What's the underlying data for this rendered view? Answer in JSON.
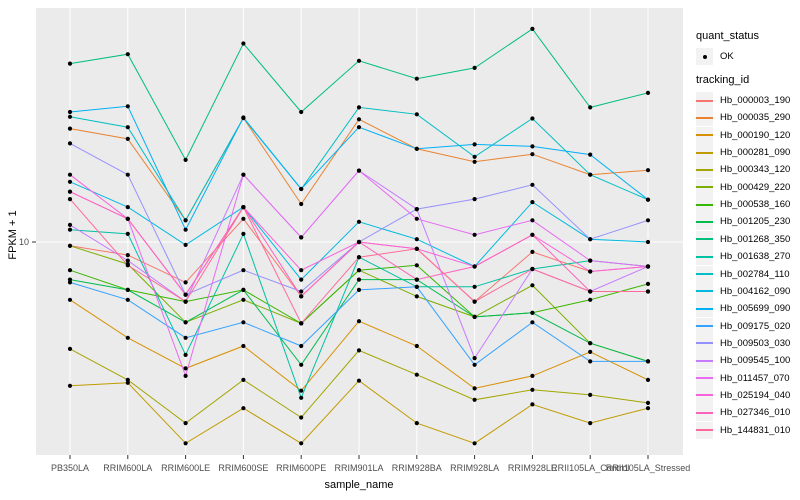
{
  "figure": {
    "background": "#FFFFFF",
    "panel_background": "#EBEBEB",
    "gridline_color": "#FFFFFF",
    "tick_color": "#333333",
    "point_color": "#000000",
    "legend_key_background": "#F2F2F2"
  },
  "axes": {
    "x_title": "sample_name",
    "y_title": "FPKM + 1",
    "y_tick_labels": [
      "10"
    ]
  },
  "legend": {
    "quant_status_title": "quant_status",
    "quant_status_items": [
      {
        "label": "OK",
        "marker": "black-point"
      }
    ],
    "tracking_title": "tracking_id"
  },
  "chart_data": {
    "type": "line",
    "title": "",
    "xlabel": "sample_name",
    "ylabel": "FPKM + 1",
    "y_scale": "log10",
    "y_ticks": [
      10
    ],
    "ylim": [
      1,
      120
    ],
    "grid": "major, white on grey panel",
    "legend_position": "right",
    "marker": "black point (quant_status = OK) at every observation",
    "x_categories": [
      "PB350LA",
      "RRIM600LA",
      "RRIM600LE",
      "RRIM600SE",
      "RRIM600PE",
      "RRIM901LA",
      "RRIM928BA",
      "RRIM928LA",
      "RRIM928LE",
      "RRII105LA_Control",
      "RRII105LA_Stressed"
    ],
    "series": [
      {
        "name": "Hb_000003_190",
        "color": "#F8766D",
        "values": [
          9.6,
          8.7,
          6.5,
          12.8,
          5.6,
          10.0,
          9.3,
          5.3,
          9.0,
          7.3,
          7.7
        ]
      },
      {
        "name": "Hb_000035_290",
        "color": "#EA8331",
        "values": [
          33.5,
          30.0,
          12.6,
          37.5,
          15.0,
          37.0,
          27.0,
          23.5,
          25.5,
          20.5,
          21.5
        ]
      },
      {
        "name": "Hb_000190_120",
        "color": "#D89000",
        "values": [
          5.4,
          3.6,
          2.6,
          3.3,
          2.05,
          4.3,
          3.3,
          2.1,
          2.4,
          3.1,
          2.3
        ]
      },
      {
        "name": "Hb_000281_090",
        "color": "#C09B00",
        "values": [
          2.16,
          2.23,
          1.17,
          1.7,
          1.17,
          2.28,
          1.45,
          1.17,
          1.77,
          1.45,
          1.7
        ]
      },
      {
        "name": "Hb_000343_120",
        "color": "#A3A500",
        "values": [
          3.2,
          2.3,
          1.45,
          2.3,
          1.54,
          3.15,
          2.43,
          1.86,
          2.07,
          1.96,
          1.8
        ]
      },
      {
        "name": "Hb_000429_220",
        "color": "#7CAE00",
        "values": [
          9.6,
          7.9,
          4.25,
          5.4,
          4.2,
          7.4,
          5.6,
          4.5,
          6.3,
          3.4,
          2.8
        ]
      },
      {
        "name": "Hb_000538_160",
        "color": "#39B600",
        "values": [
          7.4,
          6.0,
          5.3,
          6.0,
          4.2,
          7.4,
          7.8,
          4.5,
          4.7,
          5.4,
          6.4
        ]
      },
      {
        "name": "Hb_001205_230",
        "color": "#00BB4E",
        "values": [
          6.7,
          6.0,
          4.25,
          6.0,
          2.7,
          6.7,
          6.7,
          4.5,
          4.7,
          3.4,
          2.8
        ]
      },
      {
        "name": "Hb_001268_350",
        "color": "#00BF7D",
        "values": [
          67,
          74,
          24,
          83,
          40,
          69,
          57,
          64,
          97,
          42,
          49
        ]
      },
      {
        "name": "Hb_001638_270",
        "color": "#00C1A3",
        "values": [
          11.4,
          10.9,
          3.0,
          10.9,
          1.9,
          8.5,
          6.2,
          6.2,
          7.5,
          8.2,
          7.7
        ]
      },
      {
        "name": "Hb_002784_110",
        "color": "#00BFC4",
        "values": [
          38,
          34,
          12.6,
          37.5,
          17.6,
          42,
          39,
          24.8,
          37.3,
          20.5,
          15.7
        ]
      },
      {
        "name": "Hb_004162_090",
        "color": "#00BAE0",
        "values": [
          19,
          14.5,
          9.7,
          14.5,
          6.7,
          12.4,
          10.3,
          7.7,
          15.3,
          10.3,
          10.0
        ]
      },
      {
        "name": "Hb_005699_090",
        "color": "#00B0F6",
        "values": [
          40,
          42.5,
          11.4,
          37.7,
          17.6,
          34,
          27,
          28.3,
          27.7,
          25.4,
          15.7
        ]
      },
      {
        "name": "Hb_009175_020",
        "color": "#35A2FF",
        "values": [
          6.5,
          5.4,
          3.6,
          4.25,
          3.3,
          6.0,
          6.2,
          2.7,
          4.25,
          2.8,
          2.8
        ]
      },
      {
        "name": "Hb_009503_030",
        "color": "#9590FF",
        "values": [
          28.6,
          20.5,
          5.7,
          7.4,
          5.9,
          10.0,
          14.2,
          15.8,
          18.4,
          10.3,
          12.6
        ]
      },
      {
        "name": "Hb_009545_100",
        "color": "#C77CFF",
        "values": [
          12.0,
          8.2,
          5.3,
          20.5,
          10.5,
          21.4,
          14.2,
          2.9,
          7.5,
          5.9,
          7.7
        ]
      },
      {
        "name": "Hb_011457_070",
        "color": "#E76BF3",
        "values": [
          17.1,
          12.8,
          2.4,
          20.5,
          10.5,
          21.4,
          12.8,
          10.8,
          12.6,
          8.2,
          7.7
        ]
      },
      {
        "name": "Hb_025194_040",
        "color": "#FA62DB",
        "values": [
          20.5,
          12.8,
          5.7,
          14.5,
          7.4,
          10.0,
          9.3,
          7.7,
          10.8,
          7.3,
          7.7
        ]
      },
      {
        "name": "Hb_027346_010",
        "color": "#FF62BC",
        "values": [
          17.1,
          12.8,
          5.7,
          14.5,
          5.6,
          10.0,
          6.7,
          7.7,
          10.8,
          5.9,
          5.9
        ]
      },
      {
        "name": "Hb_144831_010",
        "color": "#FF6A98",
        "values": [
          15.8,
          7.8,
          5.3,
          14.5,
          4.2,
          8.5,
          9.3,
          5.3,
          7.5,
          5.9,
          5.9
        ]
      }
    ]
  }
}
